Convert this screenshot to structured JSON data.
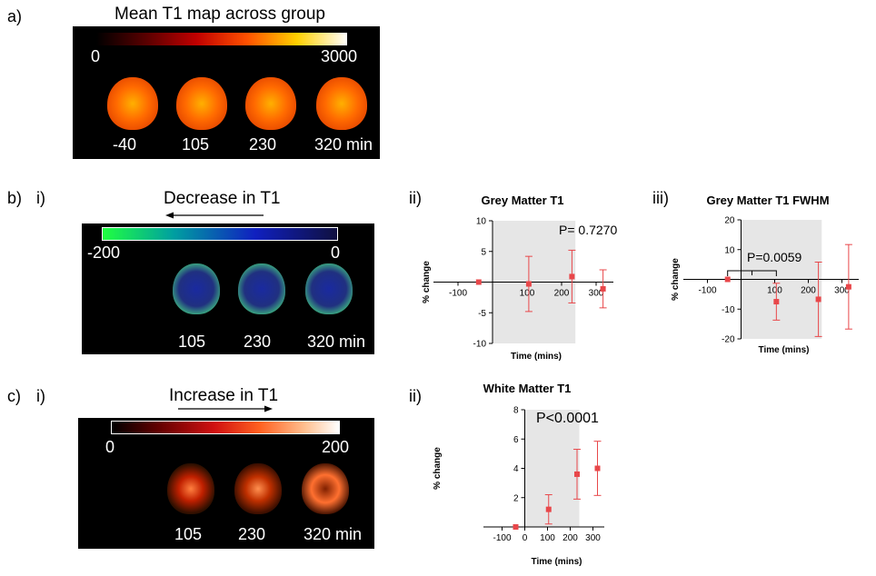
{
  "labels": {
    "a": "a)",
    "b": "b)",
    "c": "c)",
    "bi": "i)",
    "bii": "ii)",
    "biii": "iii)",
    "ci": "i)",
    "cii": "ii)"
  },
  "panel_a": {
    "title": "Mean T1 map across group",
    "scale_min": "0",
    "scale_max": "3000",
    "times": [
      "-40",
      "105",
      "230",
      "320 min"
    ]
  },
  "panel_b": {
    "title": "Decrease in T1",
    "scale_min": "-200",
    "scale_max": "0",
    "times": [
      "105",
      "230",
      "320 min"
    ]
  },
  "panel_c": {
    "title": "Increase in T1",
    "scale_min": "0",
    "scale_max": "200",
    "times": [
      "105",
      "230",
      "320 min"
    ]
  },
  "colors": {
    "marker": "#e8474a",
    "shade": "#e6e6e6"
  },
  "chart_data": [
    {
      "id": "gm",
      "type": "scatter",
      "title": "Grey Matter T1",
      "xlabel": "Time (mins)",
      "ylabel": "% change",
      "xlim": [
        -150,
        350
      ],
      "ylim": [
        -10,
        10
      ],
      "xticks": [
        -100,
        100,
        200,
        300
      ],
      "xtick_labels": [
        "-100",
        "100",
        "200",
        "300"
      ],
      "yticks": [
        -10,
        -5,
        5,
        10
      ],
      "ytick_labels": [
        "-10",
        "-5",
        "5",
        "10"
      ],
      "shade_range": [
        0,
        240
      ],
      "annotation": "P= 0.7270",
      "points": [
        {
          "x": -40,
          "y": 0,
          "err": 0
        },
        {
          "x": 105,
          "y": -0.3,
          "err": 4.5
        },
        {
          "x": 230,
          "y": 0.9,
          "err": 4.3
        },
        {
          "x": 320,
          "y": -1.1,
          "err": 3.1
        }
      ]
    },
    {
      "id": "gmfwhm",
      "type": "scatter",
      "title": "Grey Matter T1 FWHM",
      "xlabel": "Time (mins)",
      "ylabel": "% change",
      "xlim": [
        -150,
        350
      ],
      "ylim": [
        -20,
        20
      ],
      "xticks": [
        -100,
        100,
        200,
        300
      ],
      "xtick_labels": [
        "-100",
        "100",
        "200",
        "300"
      ],
      "yticks": [
        -20,
        -10,
        10,
        20
      ],
      "ytick_labels": [
        "-20",
        "-10",
        "10",
        "20"
      ],
      "shade_range": [
        0,
        240
      ],
      "annotation": "P=0.0059",
      "bracket": [
        -40,
        105
      ],
      "points": [
        {
          "x": -40,
          "y": 0,
          "err": 0
        },
        {
          "x": 105,
          "y": -7.5,
          "err": 6.2
        },
        {
          "x": 230,
          "y": -6.7,
          "err": 12.5
        },
        {
          "x": 320,
          "y": -2.5,
          "err": 14.2
        }
      ]
    },
    {
      "id": "wm",
      "type": "scatter",
      "title": "White Matter T1",
      "xlabel": "Time (mins)",
      "ylabel": "% change",
      "xlim": [
        -150,
        350
      ],
      "ylim": [
        0,
        8
      ],
      "xticks": [
        -100,
        0,
        100,
        200,
        300
      ],
      "xtick_labels": [
        "-100",
        "0",
        "100",
        "200",
        "300"
      ],
      "yticks": [
        2,
        4,
        6,
        8
      ],
      "ytick_labels": [
        "2",
        "4",
        "6",
        "8"
      ],
      "shade_range": [
        0,
        240
      ],
      "annotation": "P<0.0001",
      "points": [
        {
          "x": -40,
          "y": 0,
          "err": 0
        },
        {
          "x": 105,
          "y": 1.2,
          "err": 1.0
        },
        {
          "x": 230,
          "y": 3.6,
          "err": 1.7
        },
        {
          "x": 320,
          "y": 4.0,
          "err": 1.85
        }
      ]
    }
  ]
}
